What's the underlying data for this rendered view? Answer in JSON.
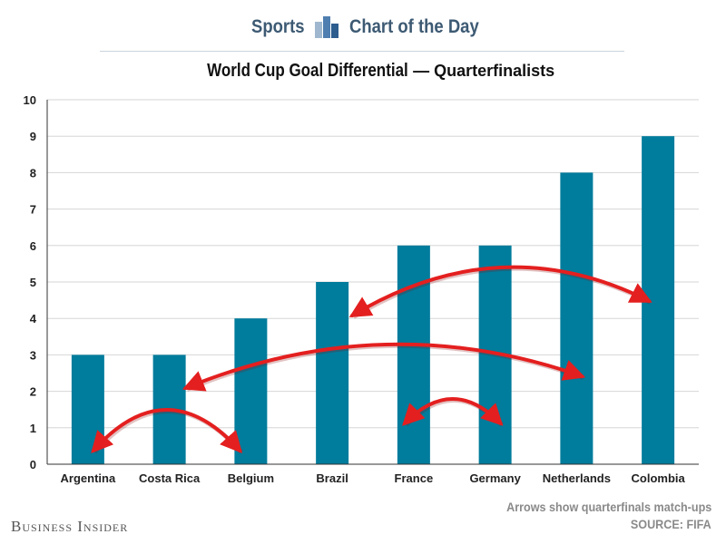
{
  "header": {
    "brand_left": "Sports",
    "brand_right": "Chart of the Day",
    "logo_icon": "bar-chart-logo-icon"
  },
  "chart_title": {
    "main": "World Cup Goal Differential",
    "sub": "— Quarterfinalists"
  },
  "footer": {
    "note": "Arrows show quarterfinals match-ups",
    "source": "SOURCE: FIFA",
    "publisher": "Business Insider"
  },
  "colors": {
    "bar": "#007c9c",
    "arrow": "#e41f1f",
    "grid": "#d6d6d6"
  },
  "chart_data": {
    "type": "bar",
    "categories": [
      "Argentina",
      "Costa Rica",
      "Belgium",
      "Brazil",
      "France",
      "Germany",
      "Netherlands",
      "Colombia"
    ],
    "values": [
      3,
      3,
      4,
      5,
      6,
      6,
      8,
      9
    ],
    "ylim": [
      0,
      10
    ],
    "yticks": [
      0,
      1,
      2,
      3,
      4,
      5,
      6,
      7,
      8,
      9,
      10
    ],
    "grid": true,
    "annotations": [
      {
        "type": "double-arrow",
        "from": "Argentina",
        "to": "Belgium"
      },
      {
        "type": "double-arrow",
        "from": "Costa Rica",
        "to": "Netherlands"
      },
      {
        "type": "double-arrow",
        "from": "Brazil",
        "to": "Colombia"
      },
      {
        "type": "double-arrow",
        "from": "France",
        "to": "Germany"
      }
    ]
  }
}
